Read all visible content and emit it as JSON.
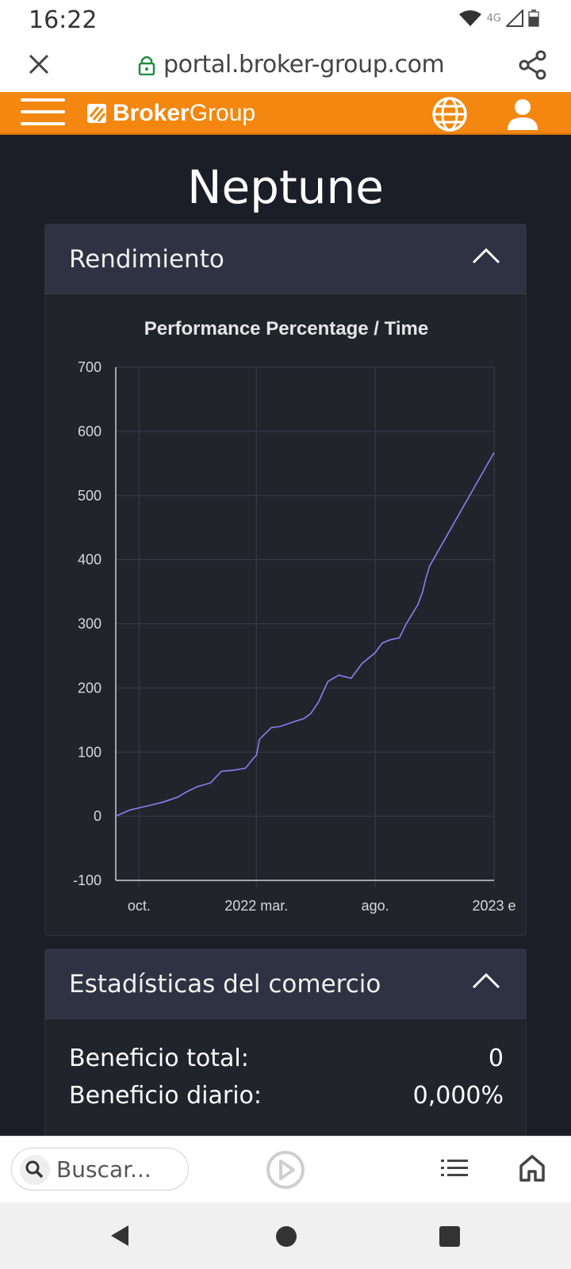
{
  "status_bar": {
    "time": "16:22",
    "network": "4G"
  },
  "browser": {
    "url": "portal.broker-group.com"
  },
  "site": {
    "logo_bold": "Broker",
    "logo_light": "Group"
  },
  "page": {
    "title": "Neptune"
  },
  "performance_card": {
    "title": "Rendimiento"
  },
  "chart_data": {
    "type": "line",
    "title": "Performance Percentage / Time",
    "xlabel": "",
    "ylabel": "",
    "ylim": [
      -100,
      700
    ],
    "yticks": [
      700,
      600,
      500,
      400,
      300,
      200,
      100,
      0,
      -100
    ],
    "xticks": [
      "oct.",
      "2022 mar.",
      "ago.",
      "2023 e"
    ],
    "grid": true,
    "series": [
      {
        "color": "#8b7ff2",
        "x": [
          "2021-09-01",
          "2021-09-10",
          "2021-09-20",
          "2021-10-01",
          "2021-10-15",
          "2021-11-01",
          "2021-11-20",
          "2021-12-01",
          "2021-12-15",
          "2022-01-01",
          "2022-01-15",
          "2022-02-01",
          "2022-02-15",
          "2022-02-25",
          "2022-03-01",
          "2022-03-05",
          "2022-03-20",
          "2022-04-01",
          "2022-04-20",
          "2022-05-01",
          "2022-05-10",
          "2022-05-20",
          "2022-06-01",
          "2022-06-15",
          "2022-07-01",
          "2022-07-15",
          "2022-08-01",
          "2022-08-10",
          "2022-08-20",
          "2022-09-01",
          "2022-09-10",
          "2022-09-15",
          "2022-09-20",
          "2022-09-25",
          "2022-10-01",
          "2022-10-05",
          "2022-10-10",
          "2023-01-01"
        ],
        "values": [
          0,
          5,
          10,
          13,
          17,
          22,
          30,
          38,
          46,
          52,
          70,
          72,
          75,
          90,
          95,
          120,
          138,
          140,
          148,
          152,
          160,
          178,
          210,
          220,
          215,
          238,
          255,
          270,
          275,
          278,
          300,
          310,
          320,
          330,
          350,
          370,
          390,
          567
        ]
      }
    ]
  },
  "stats_card": {
    "title": "Estadísticas del comercio",
    "rows": [
      {
        "label": "Beneficio total:",
        "value": "0"
      },
      {
        "label": "Beneficio diario:",
        "value": "0,000%"
      }
    ]
  },
  "bottom_bar": {
    "search_placeholder": "Buscar..."
  },
  "colors": {
    "brand_orange": "#f3870f",
    "series_line": "#8b7ff2",
    "background": "#1b1d27"
  }
}
